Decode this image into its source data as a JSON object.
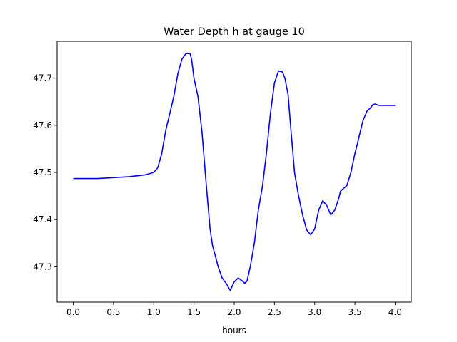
{
  "chart_data": {
    "type": "line",
    "title": "Water Depth h at gauge 10",
    "xlabel": "hours",
    "ylabel": "",
    "xlim": [
      -0.2,
      4.2
    ],
    "ylim": [
      47.225,
      47.778
    ],
    "xticks": [
      0.0,
      0.5,
      1.0,
      1.5,
      2.0,
      2.5,
      3.0,
      3.5,
      4.0
    ],
    "xtick_labels": [
      "0.0",
      "0.5",
      "1.0",
      "1.5",
      "2.0",
      "2.5",
      "3.0",
      "3.5",
      "4.0"
    ],
    "yticks": [
      47.3,
      47.4,
      47.5,
      47.6,
      47.7
    ],
    "ytick_labels": [
      "47.3",
      "47.4",
      "47.5",
      "47.6",
      "47.7"
    ],
    "grid": false,
    "colors": {
      "line": "#0000ff"
    },
    "series": [
      {
        "x": [
          0.0,
          0.3,
          0.5,
          0.7,
          0.9,
          1.0,
          1.05,
          1.1,
          1.15,
          1.2,
          1.25,
          1.3,
          1.35,
          1.4,
          1.45,
          1.47,
          1.5,
          1.55,
          1.6,
          1.65,
          1.7,
          1.73,
          1.77,
          1.8,
          1.85,
          1.9,
          1.95,
          2.0,
          2.05,
          2.1,
          2.13,
          2.16,
          2.2,
          2.25,
          2.3,
          2.35,
          2.4,
          2.45,
          2.5,
          2.55,
          2.6,
          2.63,
          2.67,
          2.7,
          2.75,
          2.8,
          2.85,
          2.9,
          2.95,
          3.0,
          3.05,
          3.1,
          3.15,
          3.2,
          3.25,
          3.28,
          3.3,
          3.32,
          3.35,
          3.4,
          3.45,
          3.5,
          3.53,
          3.55,
          3.6,
          3.65,
          3.7,
          3.72,
          3.75,
          3.8,
          3.85,
          3.9,
          3.93,
          3.95,
          4.0
        ],
        "y": [
          47.487,
          47.487,
          47.489,
          47.491,
          47.495,
          47.5,
          47.51,
          47.54,
          47.59,
          47.625,
          47.662,
          47.71,
          47.74,
          47.752,
          47.752,
          47.74,
          47.7,
          47.66,
          47.585,
          47.48,
          47.38,
          47.345,
          47.32,
          47.3,
          47.276,
          47.265,
          47.25,
          47.268,
          47.276,
          47.27,
          47.265,
          47.27,
          47.3,
          47.35,
          47.42,
          47.47,
          47.54,
          47.625,
          47.69,
          47.715,
          47.713,
          47.7,
          47.665,
          47.6,
          47.5,
          47.45,
          47.41,
          47.378,
          47.368,
          47.38,
          47.42,
          47.44,
          47.43,
          47.41,
          47.42,
          47.435,
          47.445,
          47.46,
          47.465,
          47.472,
          47.5,
          47.54,
          47.56,
          47.575,
          47.61,
          47.63,
          47.638,
          47.643,
          47.645,
          47.642,
          47.642,
          47.642,
          47.642,
          47.642,
          47.642
        ]
      }
    ]
  }
}
